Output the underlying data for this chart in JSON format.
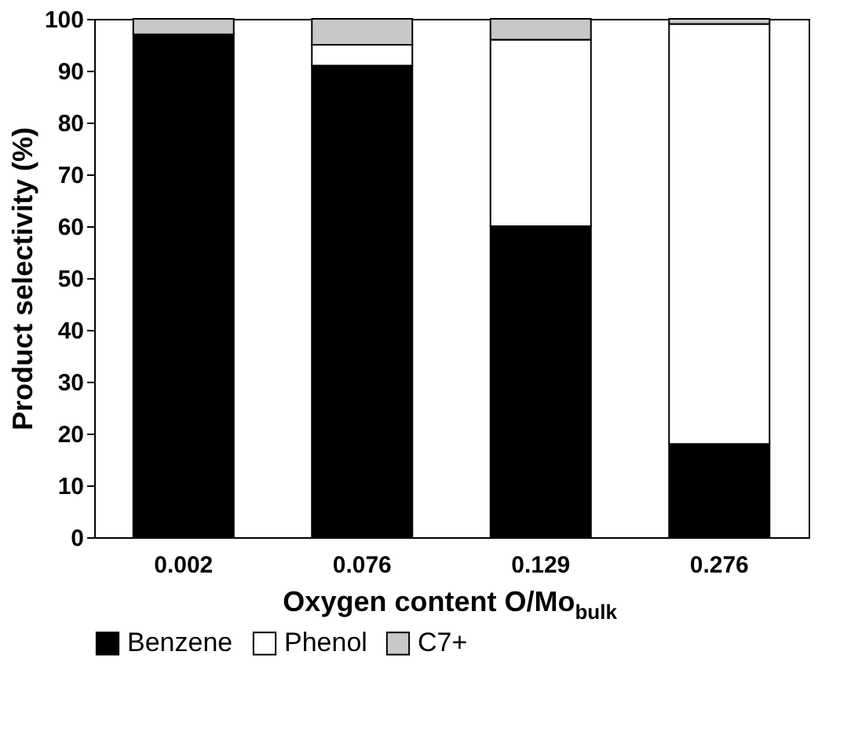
{
  "chart_data": {
    "type": "bar",
    "stacked": true,
    "xlabel": "Oxygen content O/Mo$_{bulk}$",
    "ylabel": "Product selectivity (%)",
    "categories": [
      "0.002",
      "0.076",
      "0.129",
      "0.276"
    ],
    "series": [
      {
        "name": "Benzene",
        "color": "#000000",
        "values": [
          97,
          91,
          60,
          18
        ]
      },
      {
        "name": "Phenol",
        "color": "#ffffff",
        "values": [
          0,
          4,
          36,
          81
        ]
      },
      {
        "name": "C7+",
        "color": "#c8c8c8",
        "values": [
          3,
          5,
          4,
          1
        ]
      }
    ],
    "ylim": [
      0,
      100
    ],
    "yticks": [
      0,
      10,
      20,
      30,
      40,
      50,
      60,
      70,
      80,
      90,
      100
    ],
    "grid": false,
    "legend": "bottom"
  }
}
